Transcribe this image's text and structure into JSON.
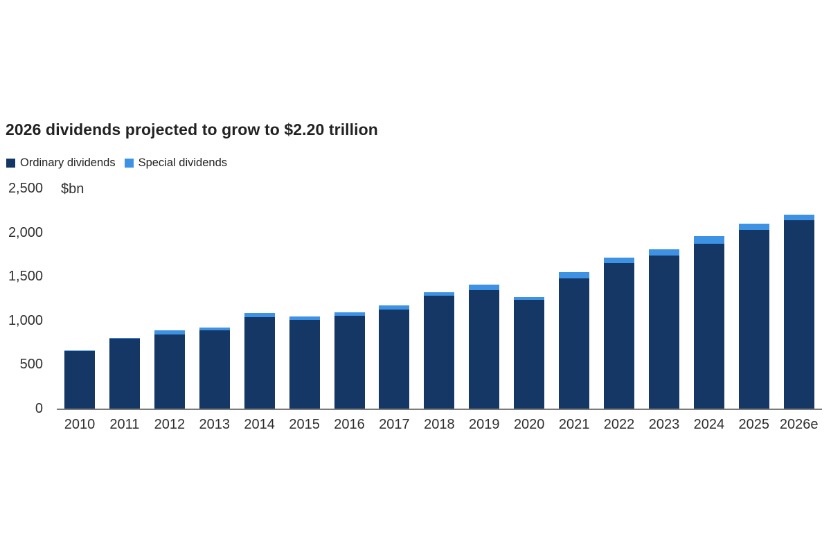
{
  "page": {
    "background_color": "#ffffff"
  },
  "chart_data": {
    "type": "bar",
    "stacked": true,
    "title": "2026 dividends projected to grow to $2.20 trillion",
    "unit_label": "$bn",
    "legend_position": "top-left",
    "grid": false,
    "categories": [
      "2010",
      "2011",
      "2012",
      "2013",
      "2014",
      "2015",
      "2016",
      "2017",
      "2018",
      "2019",
      "2020",
      "2021",
      "2022",
      "2023",
      "2024",
      "2025",
      "2026e"
    ],
    "series": [
      {
        "name": "Ordinary dividends",
        "color": "#143765",
        "values": [
          655,
          795,
          840,
          885,
          1035,
          1010,
          1050,
          1125,
          1285,
          1345,
          1235,
          1480,
          1650,
          1740,
          1875,
          2025,
          2135
        ]
      },
      {
        "name": "Special dividends",
        "color": "#3E92E4",
        "values": [
          8,
          10,
          45,
          35,
          50,
          35,
          45,
          45,
          35,
          60,
          30,
          65,
          65,
          65,
          80,
          75,
          65
        ]
      }
    ],
    "totals": [
      663,
      805,
      885,
      920,
      1085,
      1045,
      1095,
      1170,
      1320,
      1405,
      1265,
      1545,
      1715,
      1805,
      1955,
      2100,
      2200
    ],
    "ylim": [
      0,
      2500
    ],
    "ytick_values": [
      0,
      500,
      1000,
      1500,
      2000,
      2500
    ],
    "ytick_labels": [
      "0",
      "500",
      "1,000",
      "1,500",
      "2,000",
      "2,500"
    ],
    "axis_line_color": "#7B7B7B",
    "text_color": "#2E2E2E",
    "title_color": "#222222"
  }
}
